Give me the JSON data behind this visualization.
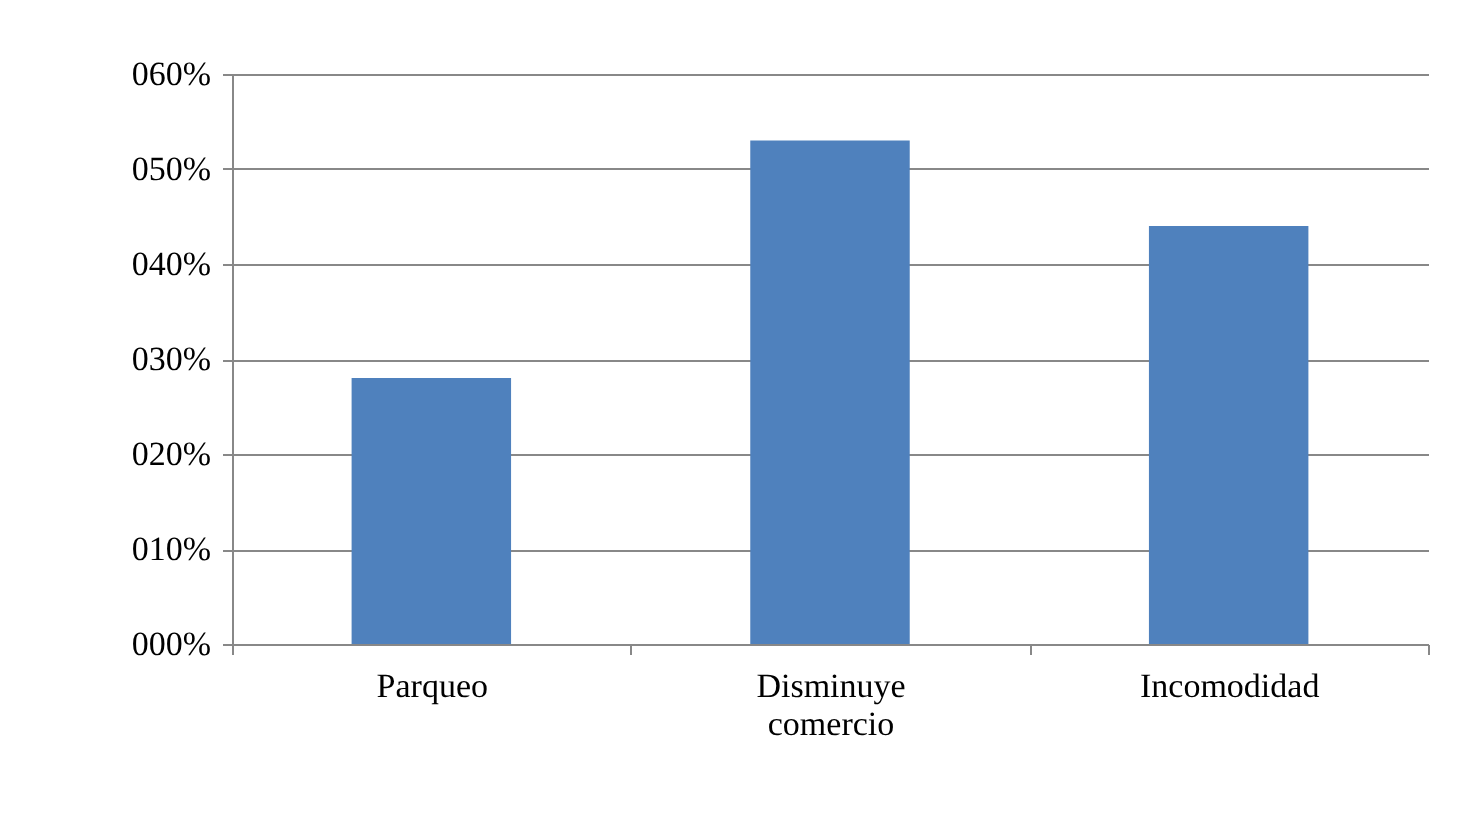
{
  "chart_data": {
    "type": "bar",
    "categories": [
      "Parqueo",
      "Disminuye comercio",
      "Incomodidad"
    ],
    "values": [
      28,
      53,
      44
    ],
    "color": "#4f81bd",
    "ylim": [
      0,
      60
    ],
    "yticks": [
      {
        "value": 0,
        "label": "000%"
      },
      {
        "value": 10,
        "label": "010%"
      },
      {
        "value": 20,
        "label": "020%"
      },
      {
        "value": 30,
        "label": "030%"
      },
      {
        "value": 40,
        "label": "040%"
      },
      {
        "value": 50,
        "label": "050%"
      },
      {
        "value": 60,
        "label": "060%"
      }
    ],
    "grid": "y"
  }
}
